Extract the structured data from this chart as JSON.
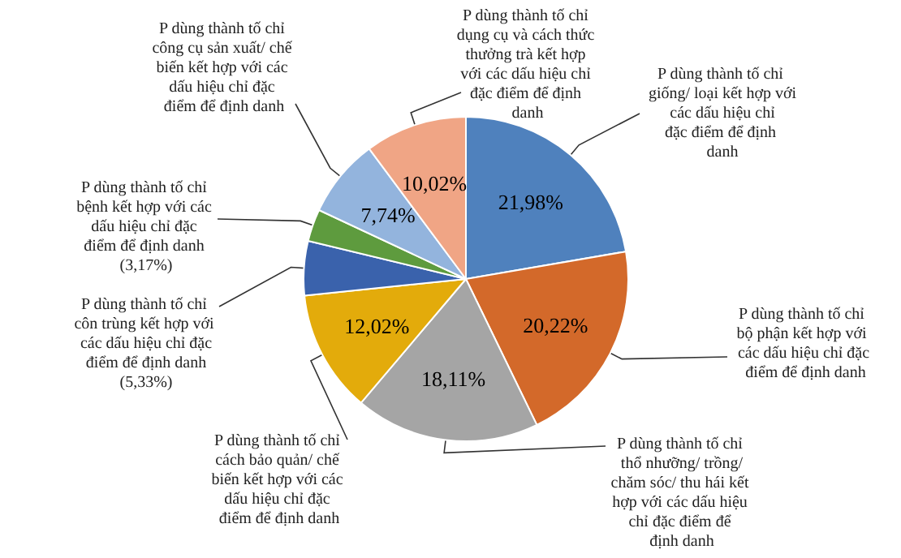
{
  "chart_data": {
    "type": "pie",
    "categories": [
      "P dùng thành tố chỉ giống/ loại kết hợp với các dấu hiệu chỉ đặc điểm để định danh",
      "P dùng thành tố chỉ bộ phận kết hợp với các dấu hiệu chỉ đặc điểm để định danh",
      "P dùng thành tố chỉ thổ nhưỡng/ trồng/chăm sóc/ thu hái kết hợp với các dấu hiệu chỉ đặc điểm để định danh",
      "P dùng thành tố chỉ cách bảo quản/ chế biến kết hợp với các dấu hiệu chỉ đặc điểm để định danh",
      "P dùng thành tố chỉ côn trùng kết hợp với các dấu hiệu chỉ đặc điểm để định danh",
      "P dùng thành tố chỉ bệnh kết hợp với các dấu hiệu chỉ đặc điểm để định danh",
      "P dùng thành tố chỉ công cụ sản xuất/ chế biến kết hợp với các dấu hiệu chỉ đặc điểm để định danh",
      "P dùng thành tố chỉ dụng cụ và cách thức thưởng trà kết hợp với các dấu hiệu chỉ đặc điểm để định danh"
    ],
    "values": [
      21.98,
      20.22,
      18.11,
      12.02,
      5.33,
      3.17,
      7.74,
      10.02
    ],
    "value_labels": [
      "21,98%",
      "20,22%",
      "18,11%",
      "12,02%",
      "(5,33%)",
      "(3,17%)",
      "7,74%",
      "10,02%"
    ],
    "colors": [
      "#4f81bd",
      "#d3692a",
      "#a5a5a5",
      "#e3ab0b",
      "#3a62ac",
      "#5e9b3e",
      "#93b4dd",
      "#f0a585"
    ],
    "legend": false
  }
}
